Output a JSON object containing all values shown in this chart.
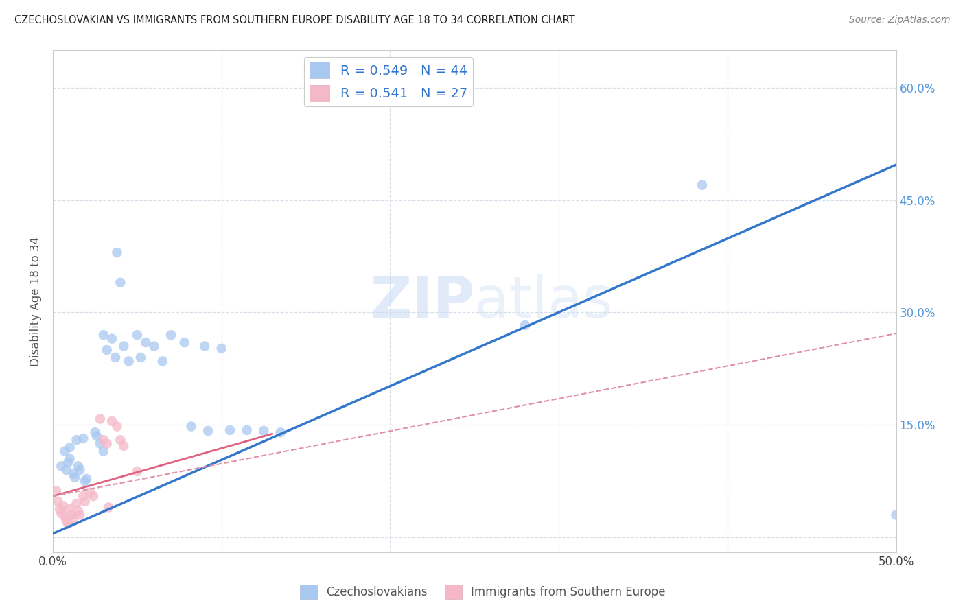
{
  "title": "CZECHOSLOVAKIAN VS IMMIGRANTS FROM SOUTHERN EUROPE DISABILITY AGE 18 TO 34 CORRELATION CHART",
  "source": "Source: ZipAtlas.com",
  "ylabel": "Disability Age 18 to 34",
  "xlim": [
    0.0,
    0.5
  ],
  "ylim": [
    -0.02,
    0.65
  ],
  "xtick_pos": [
    0.0,
    0.1,
    0.2,
    0.3,
    0.4,
    0.5
  ],
  "xtick_labels": [
    "0.0%",
    "",
    "",
    "",
    "",
    "50.0%"
  ],
  "ytick_pos": [
    0.0,
    0.15,
    0.3,
    0.45,
    0.6
  ],
  "ytick_labels_right": [
    "",
    "15.0%",
    "30.0%",
    "45.0%",
    "60.0%"
  ],
  "blue_color": "#a8c8f0",
  "pink_color": "#f5b8c8",
  "blue_line_color": "#3377cc",
  "pink_line_color": "#e06080",
  "pink_dash_color": "#e090a8",
  "watermark_color": "#ccddf5",
  "right_axis_color": "#5599dd",
  "grid_color": "#d8dfe8",
  "bg_color": "#ffffff",
  "blue_line": [
    [
      0.0,
      0.005
    ],
    [
      0.5,
      0.497
    ]
  ],
  "pink_solid_line": [
    [
      0.0,
      0.055
    ],
    [
      0.13,
      0.138
    ]
  ],
  "pink_dash_line": [
    [
      0.0,
      0.055
    ],
    [
      0.5,
      0.272
    ]
  ],
  "blue_scatter": [
    [
      0.005,
      0.095
    ],
    [
      0.007,
      0.115
    ],
    [
      0.008,
      0.09
    ],
    [
      0.009,
      0.1
    ],
    [
      0.01,
      0.12
    ],
    [
      0.01,
      0.105
    ],
    [
      0.012,
      0.085
    ],
    [
      0.013,
      0.08
    ],
    [
      0.014,
      0.13
    ],
    [
      0.015,
      0.095
    ],
    [
      0.016,
      0.09
    ],
    [
      0.018,
      0.132
    ],
    [
      0.019,
      0.075
    ],
    [
      0.02,
      0.078
    ],
    [
      0.025,
      0.14
    ],
    [
      0.026,
      0.135
    ],
    [
      0.028,
      0.125
    ],
    [
      0.03,
      0.115
    ],
    [
      0.03,
      0.27
    ],
    [
      0.032,
      0.25
    ],
    [
      0.035,
      0.265
    ],
    [
      0.037,
      0.24
    ],
    [
      0.038,
      0.38
    ],
    [
      0.04,
      0.34
    ],
    [
      0.042,
      0.255
    ],
    [
      0.045,
      0.235
    ],
    [
      0.05,
      0.27
    ],
    [
      0.052,
      0.24
    ],
    [
      0.055,
      0.26
    ],
    [
      0.06,
      0.255
    ],
    [
      0.065,
      0.235
    ],
    [
      0.07,
      0.27
    ],
    [
      0.078,
      0.26
    ],
    [
      0.082,
      0.148
    ],
    [
      0.09,
      0.255
    ],
    [
      0.092,
      0.142
    ],
    [
      0.1,
      0.252
    ],
    [
      0.105,
      0.143
    ],
    [
      0.115,
      0.143
    ],
    [
      0.125,
      0.142
    ],
    [
      0.135,
      0.14
    ],
    [
      0.28,
      0.283
    ],
    [
      0.385,
      0.47
    ],
    [
      0.5,
      0.03
    ]
  ],
  "pink_scatter": [
    [
      0.002,
      0.062
    ],
    [
      0.003,
      0.048
    ],
    [
      0.004,
      0.038
    ],
    [
      0.005,
      0.032
    ],
    [
      0.006,
      0.042
    ],
    [
      0.007,
      0.028
    ],
    [
      0.008,
      0.022
    ],
    [
      0.009,
      0.018
    ],
    [
      0.01,
      0.038
    ],
    [
      0.011,
      0.03
    ],
    [
      0.012,
      0.025
    ],
    [
      0.014,
      0.045
    ],
    [
      0.015,
      0.035
    ],
    [
      0.016,
      0.03
    ],
    [
      0.018,
      0.055
    ],
    [
      0.019,
      0.048
    ],
    [
      0.022,
      0.06
    ],
    [
      0.024,
      0.055
    ],
    [
      0.028,
      0.158
    ],
    [
      0.03,
      0.13
    ],
    [
      0.032,
      0.125
    ],
    [
      0.033,
      0.04
    ],
    [
      0.035,
      0.155
    ],
    [
      0.038,
      0.148
    ],
    [
      0.04,
      0.13
    ],
    [
      0.042,
      0.122
    ],
    [
      0.05,
      0.088
    ]
  ]
}
